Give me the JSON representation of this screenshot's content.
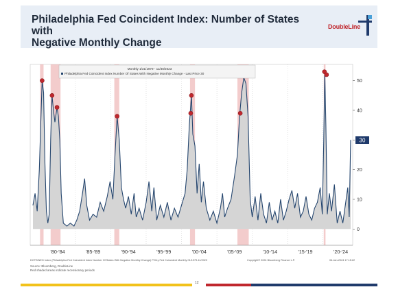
{
  "slide": {
    "title_line1": "Philadelphia Fed Coincident Index: Number of States with",
    "title_line2": "Negative Monthly Change",
    "logo_text": "DoubleLine",
    "page_number": "12"
  },
  "footer": {
    "chart_note": "DOTSINEG Index (Philadelphia Fed Coincident Index Number Of States With Negative Monthly Change) PHILy Fed Coincident Monthly 01/1979-11/2023",
    "copyright": "Copyright© 2024 Bloomberg Finance L.P.",
    "date": "06-Jan-2024 17:15:22",
    "source": "Source: Bloomberg, DoubleLine",
    "shading_note": "Red shaded areas indicate recessionary periods"
  },
  "chart_data": {
    "type": "area",
    "title": "Monthly 1/31/1979 - 11/30/2023",
    "legend": "Philadelphia Fed Coincident Index Number Of States With Negative Monthly Change - Last Price 30",
    "last_value": "30",
    "y_ticks": [
      "0",
      "10",
      "20",
      "30",
      "40",
      "50"
    ],
    "x_ticks": [
      "'80-'84",
      "'85-'89",
      "'90-'94",
      "'95-'99",
      "'00-'04",
      "'05-'09",
      "'10-'14",
      "'15-'19",
      "'20-'24"
    ],
    "ylim": [
      -5,
      55
    ],
    "xlim": [
      1979,
      2024
    ],
    "grid": "vertical dotted",
    "recessions": [
      [
        1980.0,
        1980.5
      ],
      [
        1981.5,
        1982.9
      ],
      [
        1990.5,
        1991.2
      ],
      [
        2001.2,
        2001.9
      ],
      [
        2007.9,
        2009.5
      ],
      [
        2020.1,
        2020.35
      ]
    ],
    "highlight_points": [
      {
        "x": 1980.3,
        "y": 50
      },
      {
        "x": 1981.7,
        "y": 45
      },
      {
        "x": 1982.4,
        "y": 41
      },
      {
        "x": 1990.9,
        "y": 38
      },
      {
        "x": 2001.4,
        "y": 45
      },
      {
        "x": 2001.3,
        "y": 39
      },
      {
        "x": 2008.3,
        "y": 39
      },
      {
        "x": 2020.2,
        "y": 53
      },
      {
        "x": 2020.5,
        "y": 52
      }
    ],
    "series": [
      {
        "name": "Philadelphia Fed Coincident Index Number Of States With Negative Monthly Change",
        "points": [
          [
            1979.0,
            8
          ],
          [
            1979.3,
            12
          ],
          [
            1979.6,
            6
          ],
          [
            1979.9,
            20
          ],
          [
            1980.1,
            35
          ],
          [
            1980.3,
            50
          ],
          [
            1980.5,
            46
          ],
          [
            1980.7,
            22
          ],
          [
            1980.9,
            6
          ],
          [
            1981.1,
            2
          ],
          [
            1981.3,
            5
          ],
          [
            1981.5,
            30
          ],
          [
            1981.7,
            45
          ],
          [
            1981.9,
            40
          ],
          [
            1982.1,
            36
          ],
          [
            1982.4,
            41
          ],
          [
            1982.6,
            38
          ],
          [
            1982.8,
            30
          ],
          [
            1983.0,
            12
          ],
          [
            1983.3,
            2
          ],
          [
            1983.8,
            1
          ],
          [
            1984.3,
            2
          ],
          [
            1984.8,
            1
          ],
          [
            1985.2,
            3
          ],
          [
            1985.6,
            6
          ],
          [
            1986.0,
            12
          ],
          [
            1986.3,
            17
          ],
          [
            1986.6,
            8
          ],
          [
            1987.0,
            3
          ],
          [
            1987.5,
            5
          ],
          [
            1988.0,
            4
          ],
          [
            1988.5,
            9
          ],
          [
            1989.0,
            6
          ],
          [
            1989.5,
            11
          ],
          [
            1989.9,
            16
          ],
          [
            1990.3,
            10
          ],
          [
            1990.6,
            25
          ],
          [
            1990.9,
            38
          ],
          [
            1991.2,
            30
          ],
          [
            1991.5,
            14
          ],
          [
            1991.8,
            10
          ],
          [
            1992.1,
            7
          ],
          [
            1992.5,
            11
          ],
          [
            1992.9,
            5
          ],
          [
            1993.3,
            12
          ],
          [
            1993.6,
            4
          ],
          [
            1994.0,
            7
          ],
          [
            1994.5,
            3
          ],
          [
            1995.0,
            9
          ],
          [
            1995.4,
            16
          ],
          [
            1995.8,
            6
          ],
          [
            1996.1,
            14
          ],
          [
            1996.5,
            3
          ],
          [
            1997.0,
            8
          ],
          [
            1997.5,
            4
          ],
          [
            1998.0,
            9
          ],
          [
            1998.5,
            3
          ],
          [
            1999.0,
            7
          ],
          [
            1999.5,
            4
          ],
          [
            2000.0,
            8
          ],
          [
            2000.5,
            12
          ],
          [
            2000.8,
            20
          ],
          [
            2001.1,
            35
          ],
          [
            2001.4,
            45
          ],
          [
            2001.6,
            32
          ],
          [
            2001.9,
            28
          ],
          [
            2002.2,
            12
          ],
          [
            2002.5,
            22
          ],
          [
            2002.8,
            9
          ],
          [
            2003.1,
            16
          ],
          [
            2003.5,
            7
          ],
          [
            2004.0,
            3
          ],
          [
            2004.5,
            6
          ],
          [
            2005.0,
            2
          ],
          [
            2005.5,
            7
          ],
          [
            2005.8,
            12
          ],
          [
            2006.1,
            4
          ],
          [
            2006.5,
            7
          ],
          [
            2007.0,
            10
          ],
          [
            2007.5,
            18
          ],
          [
            2007.9,
            25
          ],
          [
            2008.2,
            38
          ],
          [
            2008.5,
            46
          ],
          [
            2008.8,
            51
          ],
          [
            2009.1,
            49
          ],
          [
            2009.4,
            38
          ],
          [
            2009.7,
            10
          ],
          [
            2010.0,
            4
          ],
          [
            2010.4,
            11
          ],
          [
            2010.8,
            3
          ],
          [
            2011.2,
            12
          ],
          [
            2011.6,
            5
          ],
          [
            2012.0,
            2
          ],
          [
            2012.4,
            9
          ],
          [
            2012.8,
            3
          ],
          [
            2013.2,
            6
          ],
          [
            2013.6,
            2
          ],
          [
            2014.0,
            10
          ],
          [
            2014.4,
            3
          ],
          [
            2014.8,
            6
          ],
          [
            2015.2,
            10
          ],
          [
            2015.6,
            13
          ],
          [
            2016.0,
            7
          ],
          [
            2016.4,
            12
          ],
          [
            2016.8,
            4
          ],
          [
            2017.2,
            6
          ],
          [
            2017.6,
            11
          ],
          [
            2018.0,
            5
          ],
          [
            2018.4,
            3
          ],
          [
            2018.8,
            7
          ],
          [
            2019.2,
            9
          ],
          [
            2019.6,
            14
          ],
          [
            2019.9,
            5
          ],
          [
            2020.1,
            30
          ],
          [
            2020.25,
            53
          ],
          [
            2020.4,
            35
          ],
          [
            2020.6,
            5
          ],
          [
            2020.9,
            12
          ],
          [
            2021.2,
            6
          ],
          [
            2021.6,
            15
          ],
          [
            2022.0,
            2
          ],
          [
            2022.4,
            6
          ],
          [
            2022.8,
            2
          ],
          [
            2023.2,
            9
          ],
          [
            2023.5,
            14
          ],
          [
            2023.7,
            4
          ],
          [
            2023.9,
            30
          ]
        ]
      }
    ]
  }
}
